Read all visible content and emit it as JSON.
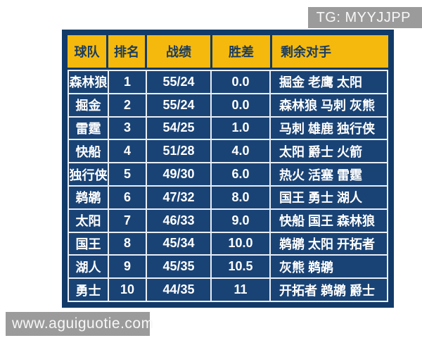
{
  "watermarks": {
    "telegram": "TG: MYYJJPP",
    "website": "www.aguiguotie.com"
  },
  "chart_data": {
    "type": "table",
    "columns": [
      "球队",
      "排名",
      "战绩",
      "胜差",
      "剩余对手"
    ],
    "rows": [
      {
        "team": "森林狼",
        "rank": "1",
        "record": "55/24",
        "games_behind": "0.0",
        "remaining": "掘金 老鹰 太阳"
      },
      {
        "team": "掘金",
        "rank": "2",
        "record": "55/24",
        "games_behind": "0.0",
        "remaining": "森林狼 马刺 灰熊"
      },
      {
        "team": "雷霆",
        "rank": "3",
        "record": "54/25",
        "games_behind": "1.0",
        "remaining": "马刺 雄鹿 独行侠"
      },
      {
        "team": "快船",
        "rank": "4",
        "record": "51/28",
        "games_behind": "4.0",
        "remaining": "太阳 爵士 火箭"
      },
      {
        "team": "独行侠",
        "rank": "5",
        "record": "49/30",
        "games_behind": "6.0",
        "remaining": "热火 活塞 雷霆"
      },
      {
        "team": "鹈鹕",
        "rank": "6",
        "record": "47/32",
        "games_behind": "8.0",
        "remaining": "国王 勇士 湖人"
      },
      {
        "team": "太阳",
        "rank": "7",
        "record": "46/33",
        "games_behind": "9.0",
        "remaining": "快船 国王 森林狼"
      },
      {
        "team": "国王",
        "rank": "8",
        "record": "45/34",
        "games_behind": "10.0",
        "remaining": "鹈鹕 太阳 开拓者"
      },
      {
        "team": "湖人",
        "rank": "9",
        "record": "45/35",
        "games_behind": "10.5",
        "remaining": "灰熊 鹈鹕"
      },
      {
        "team": "勇士",
        "rank": "10",
        "record": "44/35",
        "games_behind": "11",
        "remaining": "开拓者 鹈鹕 爵士"
      }
    ],
    "layout": {
      "grid": "on",
      "header_position": "top"
    }
  },
  "colors": {
    "header_bg": "#f5b90d",
    "header_text": "#1b3c60",
    "frame_bg": "#123a68",
    "cell_bg": "#1a4375",
    "cell_text": "#ffffff",
    "grid_line": "#e9eff6",
    "watermark_bg": "#9b9b9b",
    "watermark_text": "#f7f7f7"
  }
}
